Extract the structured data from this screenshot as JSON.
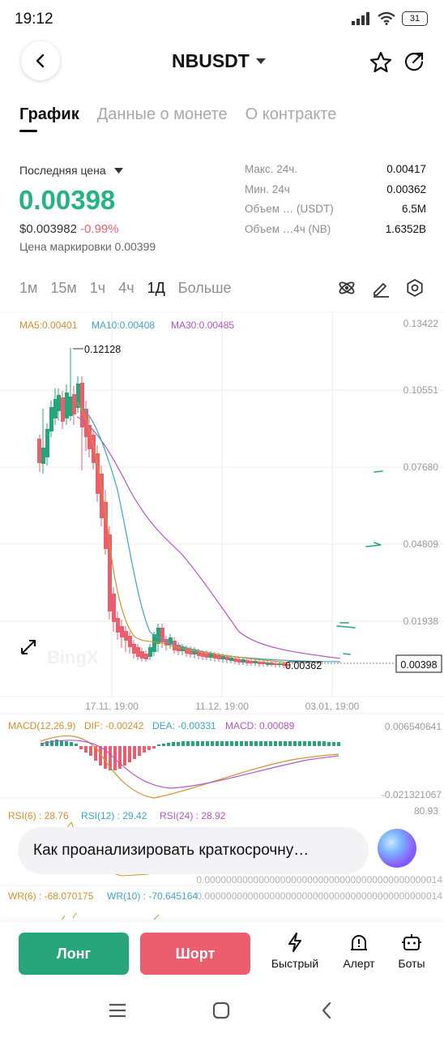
{
  "status": {
    "time": "19:12",
    "battery": "31"
  },
  "header": {
    "pair": "NBUSDT"
  },
  "tabs": [
    "График",
    "Данные о монете",
    "О контракте"
  ],
  "ticker": {
    "last_label": "Последняя цена",
    "last_price": "0.00398",
    "usd_price": "$0.003982",
    "change": "-0.99%",
    "mark_price": "Цена маркировки 0.00399",
    "stats": [
      {
        "k": "Макс. 24ч.",
        "v": "0.00417"
      },
      {
        "k": "Мин. 24ч",
        "v": "0.00362"
      },
      {
        "k": "Объем … (USDT)",
        "v": "6.5M"
      },
      {
        "k": "Объем …4ч (NB)",
        "v": "1.6352B"
      }
    ]
  },
  "timeframes": [
    "1м",
    "15м",
    "1ч",
    "4ч",
    "1Д",
    "Больше"
  ],
  "indicators": {
    "ma5": "MA5:0.00401",
    "ma10": "MA10:0.00408",
    "ma30": "MA30:0.00485",
    "macd_name": "MACD(12,26,9)",
    "dif": "DIF: -0.00242",
    "dea": "DEA: -0.00331",
    "macd": "MACD: 0.00089",
    "rsi6": "RSI(6) : 28.76",
    "rsi12": "RSI(12) : 29.42",
    "rsi24": "RSI(24) : 28.92",
    "wr6": "WR(6) : -68.070175",
    "wr10": "WR(10) : -70.645164"
  },
  "chart_data": {
    "type": "candlestick",
    "x_ticks": [
      "17.11, 19:00",
      "11.12, 19:00",
      "03.01, 19:00"
    ],
    "y_ticks": [
      "0.13422",
      "0.10551",
      "0.07680",
      "0.04809",
      "0.01938"
    ],
    "high_label": "0.12128",
    "low_label": "0.00362",
    "current_price": "0.00398",
    "macd_axis": [
      "0.006540641",
      "-0.021321067"
    ],
    "rsi_axis": "80.93",
    "zero_axis": "0.00000000000000000000000000000000000000000014",
    "colors": {
      "up": "#27a57a",
      "down": "#ec5d6d",
      "ma5": "#d4902b",
      "ma10": "#3aa6c9",
      "ma30": "#b455c9"
    }
  },
  "assistant": {
    "prompt": "Как проанализировать краткосрочну…"
  },
  "actions": {
    "long": "Лонг",
    "short": "Шорт",
    "quick": "Быстрый",
    "alert": "Алерт",
    "bots": "Боты"
  }
}
